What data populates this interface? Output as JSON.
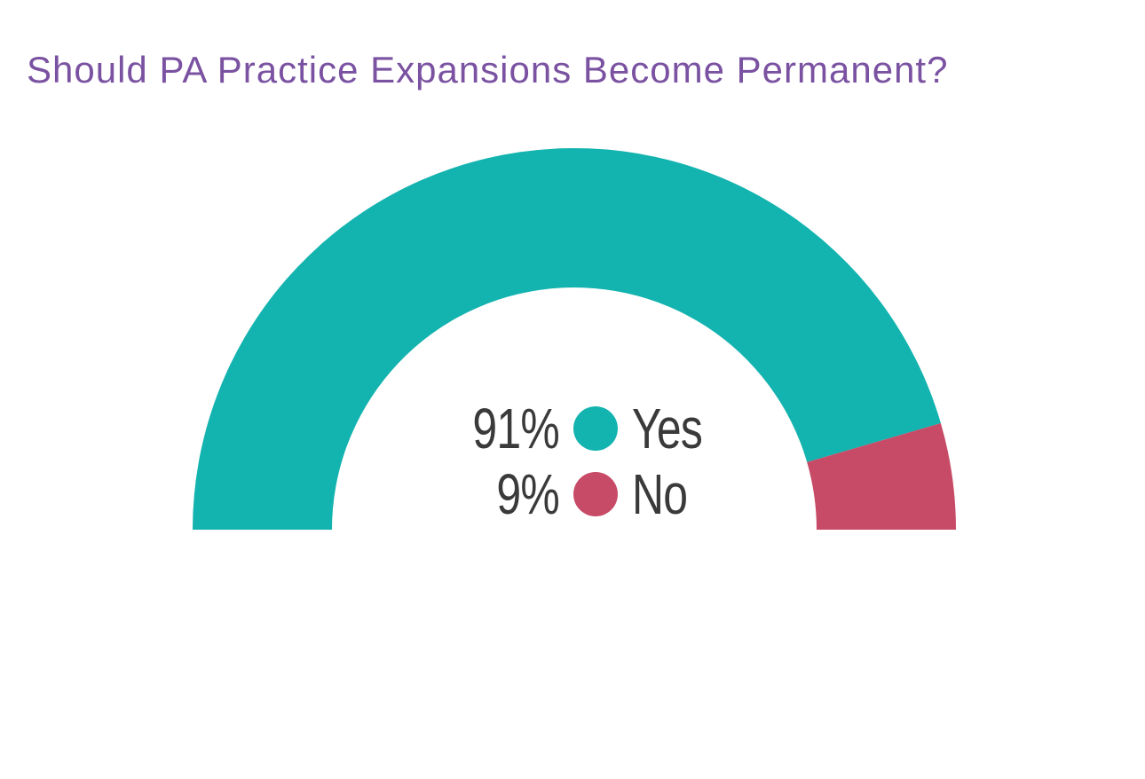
{
  "header": {
    "title_color": "#7A52A1"
  },
  "legend_text_color": "#3A3A3A",
  "chart_data": {
    "type": "pie",
    "subtype": "half-donut-gauge",
    "title": "Should PA Practice Expansions Become Permanent?",
    "categories": [
      "Yes",
      "No"
    ],
    "values": [
      91,
      9
    ],
    "slices": [
      {
        "label": "Yes",
        "value": 91,
        "pct_label": "91%",
        "color": "#13B3AF"
      },
      {
        "label": "No",
        "value": 9,
        "pct_label": "9%",
        "color": "#C74B67"
      }
    ],
    "span_degrees": 180,
    "legend_position": "center-of-donut-hole",
    "grid": false
  }
}
